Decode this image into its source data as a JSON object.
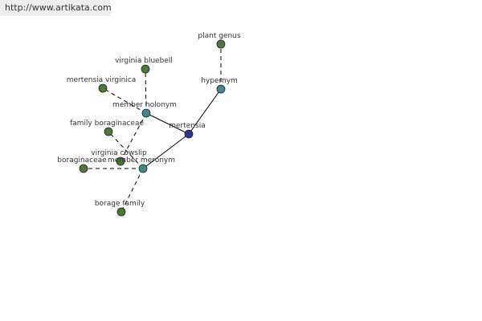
{
  "header": {
    "url": "http://www.artikata.com"
  },
  "nodes": [
    {
      "label": "mertensia"
    },
    {
      "label": "hypernym"
    },
    {
      "label": "plant genus"
    },
    {
      "label": "member holonym"
    },
    {
      "label": "virginia bluebell"
    },
    {
      "label": "mertensia virginica"
    },
    {
      "label": "virginia cowslip"
    },
    {
      "label": "member meronym"
    },
    {
      "label": "family boraginaceae"
    },
    {
      "label": "boraginaceae"
    },
    {
      "label": "borage family"
    }
  ]
}
